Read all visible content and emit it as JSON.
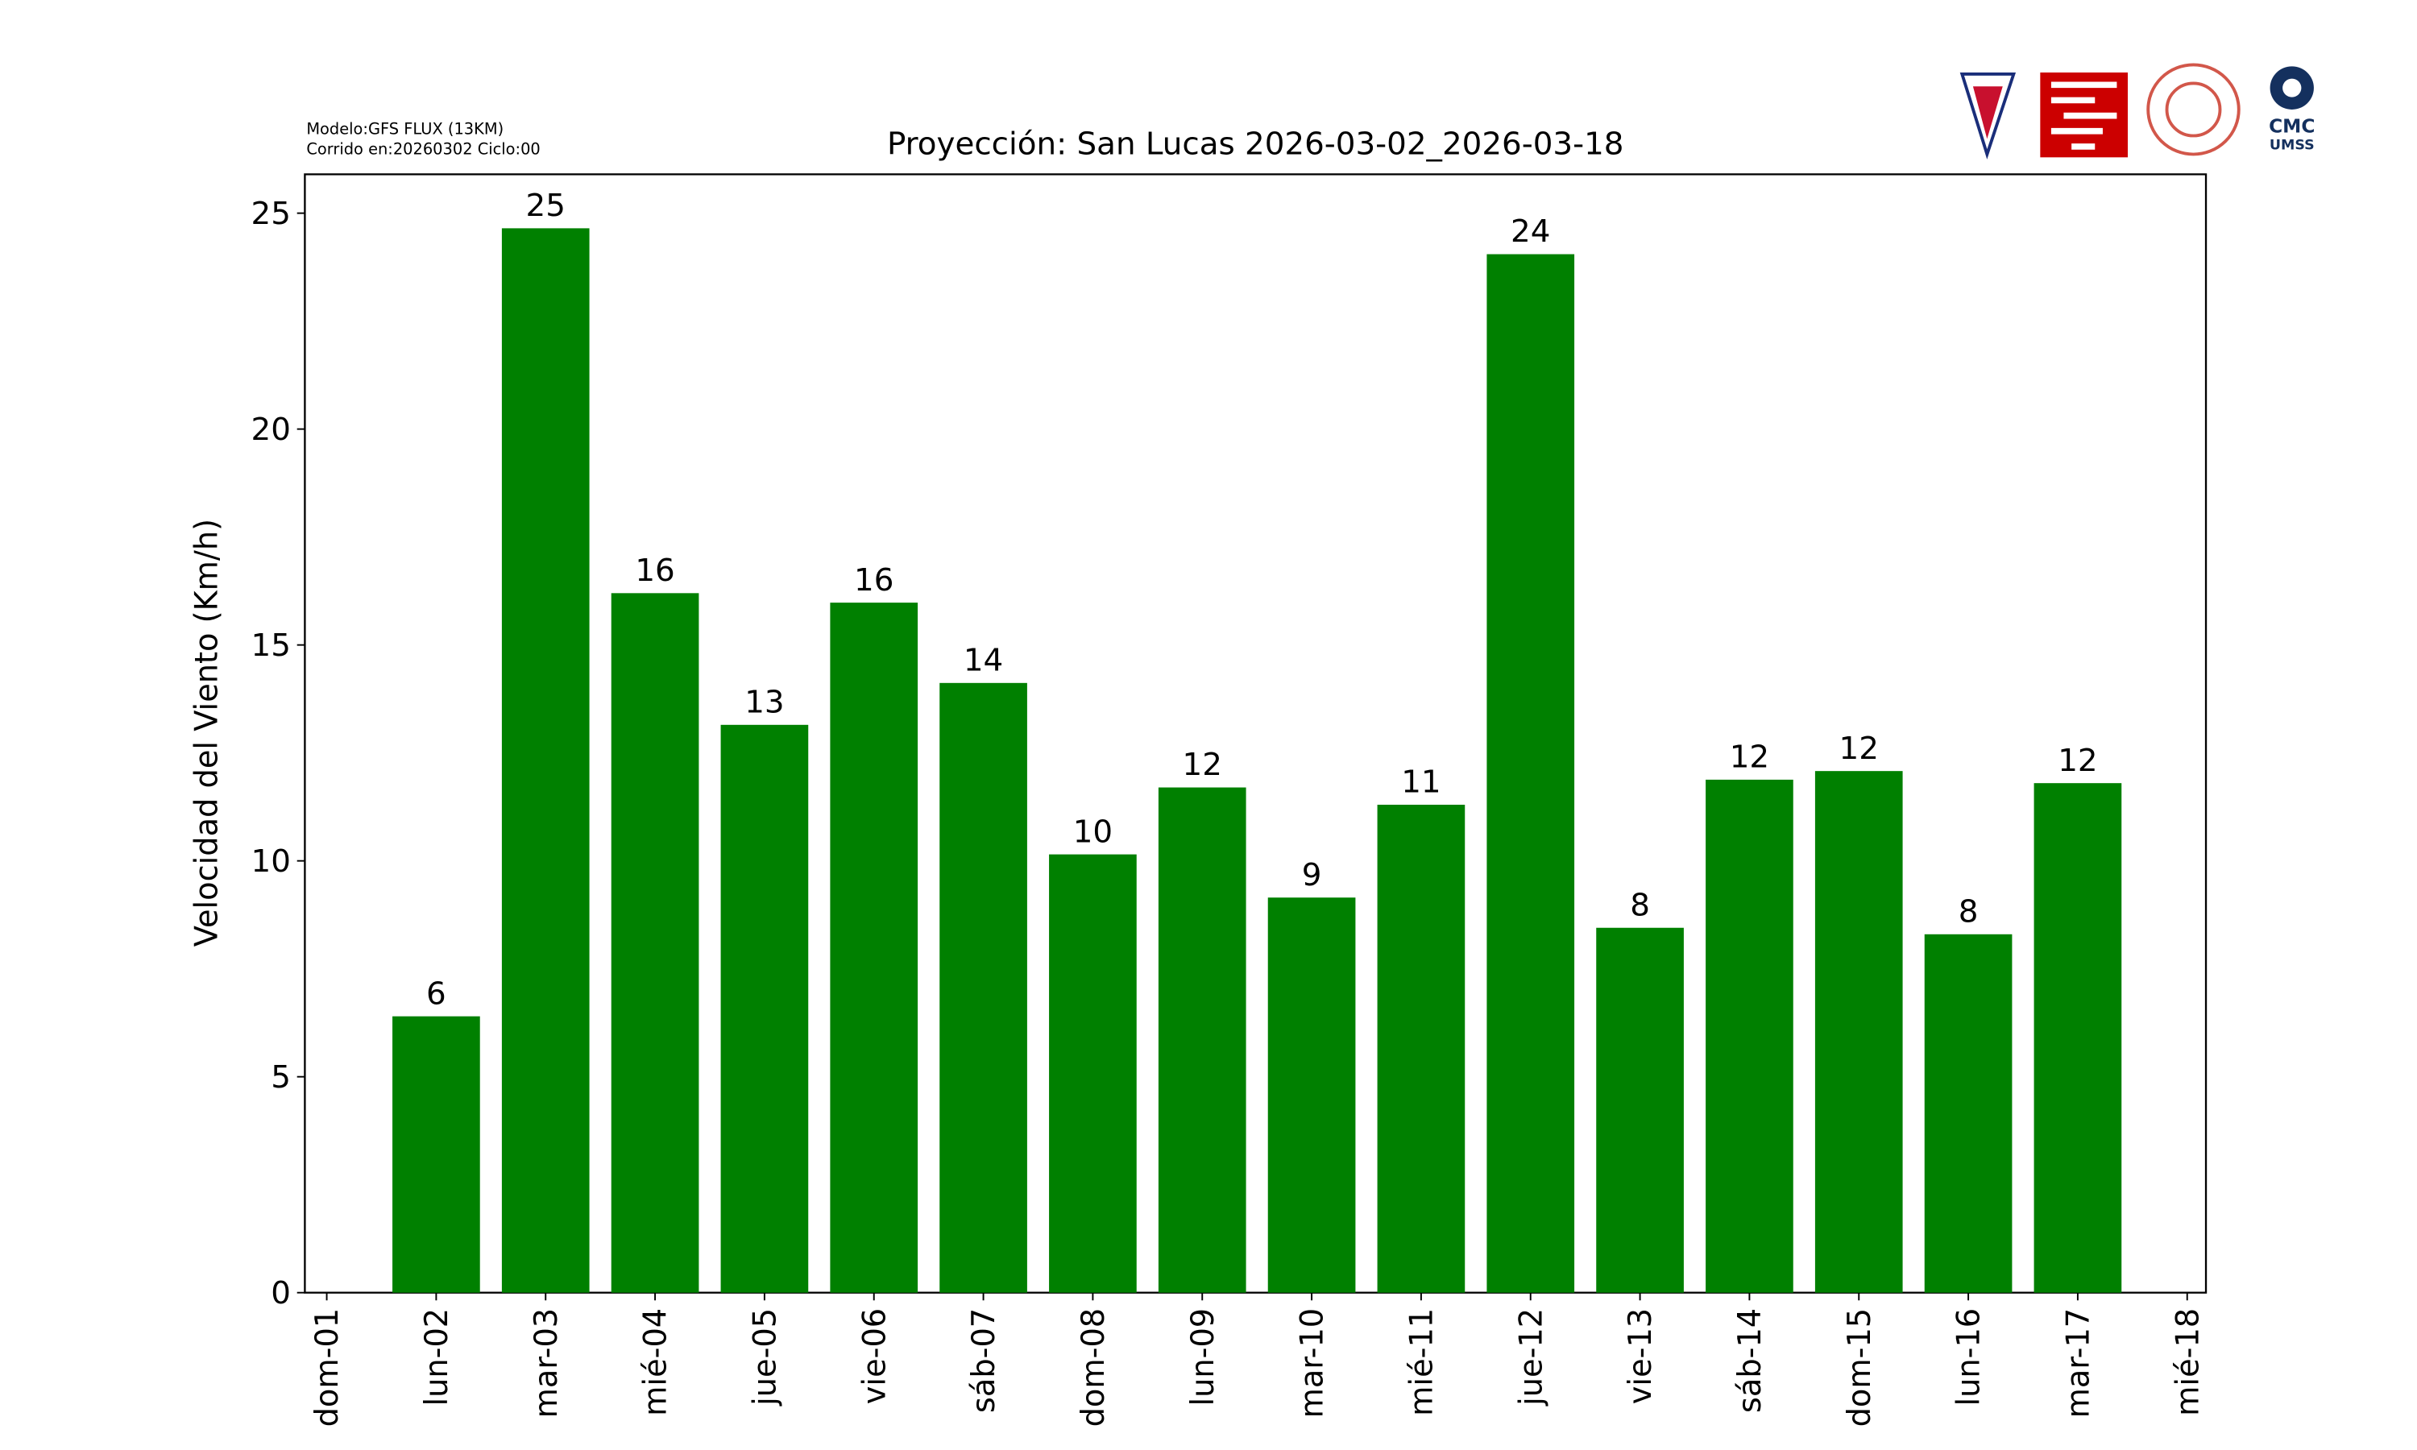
{
  "chart_data": {
    "type": "bar",
    "title": "Proyección: San Lucas  2026-03-02_2026-03-18",
    "annotations": [
      "Modelo:GFS FLUX (13KM)",
      "Corrido en:20260302 Ciclo:00"
    ],
    "ylabel": "Velocidad del Viento (Km/h)",
    "categories": [
      "dom-01",
      "lun-02",
      "mar-03",
      "mié-04",
      "jue-05",
      "vie-06",
      "sáb-07",
      "dom-08",
      "lun-09",
      "mar-10",
      "mié-11",
      "jue-12",
      "vie-13",
      "sáb-14",
      "dom-15",
      "lun-16",
      "mar-17",
      "mié-18"
    ],
    "values": [
      null,
      6.4,
      24.65,
      16.2,
      13.15,
      15.98,
      14.12,
      10.15,
      11.7,
      9.15,
      11.3,
      24.05,
      8.45,
      11.88,
      12.08,
      8.3,
      11.8,
      null
    ],
    "value_labels": [
      null,
      "6",
      "25",
      "16",
      "13",
      "16",
      "14",
      "10",
      "12",
      "9",
      "11",
      "24",
      "8",
      "12",
      "12",
      "8",
      "12",
      null
    ],
    "color": "#008000",
    "ylim": [
      0,
      25.9
    ],
    "yticks": [
      0,
      5,
      10,
      15,
      20,
      25
    ],
    "grid": false
  },
  "logos": {
    "cmc": "CMC",
    "umss": "UMSS"
  }
}
